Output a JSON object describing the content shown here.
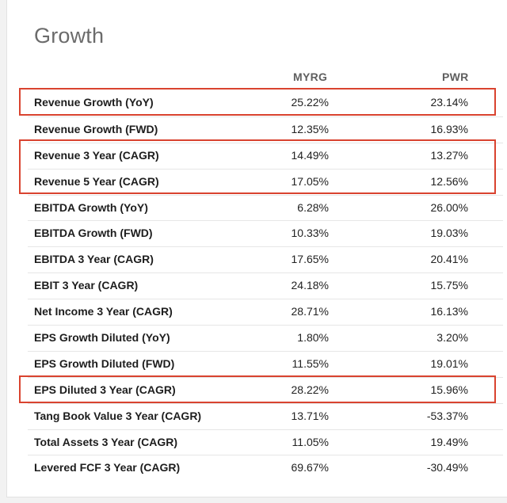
{
  "section": {
    "title": "Growth",
    "columns": [
      "MYRG",
      "PWR"
    ],
    "rows": [
      {
        "label": "Revenue Growth (YoY)",
        "myrg": "25.22%",
        "pwr": "23.14%"
      },
      {
        "label": "Revenue Growth (FWD)",
        "myrg": "12.35%",
        "pwr": "16.93%"
      },
      {
        "label": "Revenue 3 Year (CAGR)",
        "myrg": "14.49%",
        "pwr": "13.27%"
      },
      {
        "label": "Revenue 5 Year (CAGR)",
        "myrg": "17.05%",
        "pwr": "12.56%"
      },
      {
        "label": "EBITDA Growth (YoY)",
        "myrg": "6.28%",
        "pwr": "26.00%"
      },
      {
        "label": "EBITDA Growth (FWD)",
        "myrg": "10.33%",
        "pwr": "19.03%"
      },
      {
        "label": "EBITDA 3 Year (CAGR)",
        "myrg": "17.65%",
        "pwr": "20.41%"
      },
      {
        "label": "EBIT 3 Year (CAGR)",
        "myrg": "24.18%",
        "pwr": "15.75%"
      },
      {
        "label": "Net Income 3 Year (CAGR)",
        "myrg": "28.71%",
        "pwr": "16.13%"
      },
      {
        "label": "EPS Growth Diluted (YoY)",
        "myrg": "1.80%",
        "pwr": "3.20%"
      },
      {
        "label": "EPS Growth Diluted (FWD)",
        "myrg": "11.55%",
        "pwr": "19.01%"
      },
      {
        "label": "EPS Diluted 3 Year (CAGR)",
        "myrg": "28.22%",
        "pwr": "15.96%"
      },
      {
        "label": "Tang Book Value 3 Year (CAGR)",
        "myrg": "13.71%",
        "pwr": "-53.37%"
      },
      {
        "label": "Total Assets 3 Year (CAGR)",
        "myrg": "11.05%",
        "pwr": "19.49%"
      },
      {
        "label": "Levered FCF 3 Year (CAGR)",
        "myrg": "69.67%",
        "pwr": "-30.49%"
      }
    ]
  },
  "highlight_color": "#d9432f"
}
